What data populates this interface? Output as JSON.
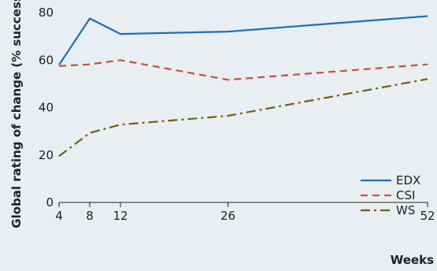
{
  "chart_data": {
    "type": "line",
    "xlabel": "Weeks",
    "ylabel": "Global rating of change (% success)",
    "x": [
      4,
      8,
      12,
      26,
      52
    ],
    "x_ticks": [
      "4",
      "8",
      "12",
      "26",
      "52"
    ],
    "xlim": [
      4,
      52
    ],
    "y_ticks": [
      "0",
      "20",
      "40",
      "60",
      "80"
    ],
    "ylim": [
      0,
      80
    ],
    "grid": false,
    "legend_position": "bottom-right",
    "series": [
      {
        "name": "EDX",
        "color": "#1f6eb5",
        "dash": "solid",
        "values": [
          58,
          77.5,
          71,
          72,
          78.5
        ]
      },
      {
        "name": "CSI",
        "color": "#c8503a",
        "dash": "dashed",
        "values": [
          57.5,
          58.2,
          60,
          51.7,
          58.2
        ]
      },
      {
        "name": "WS",
        "color": "#7a5a12",
        "dash": "dashdot",
        "values": [
          19.5,
          29.3,
          32.8,
          36.5,
          52
        ]
      }
    ]
  }
}
